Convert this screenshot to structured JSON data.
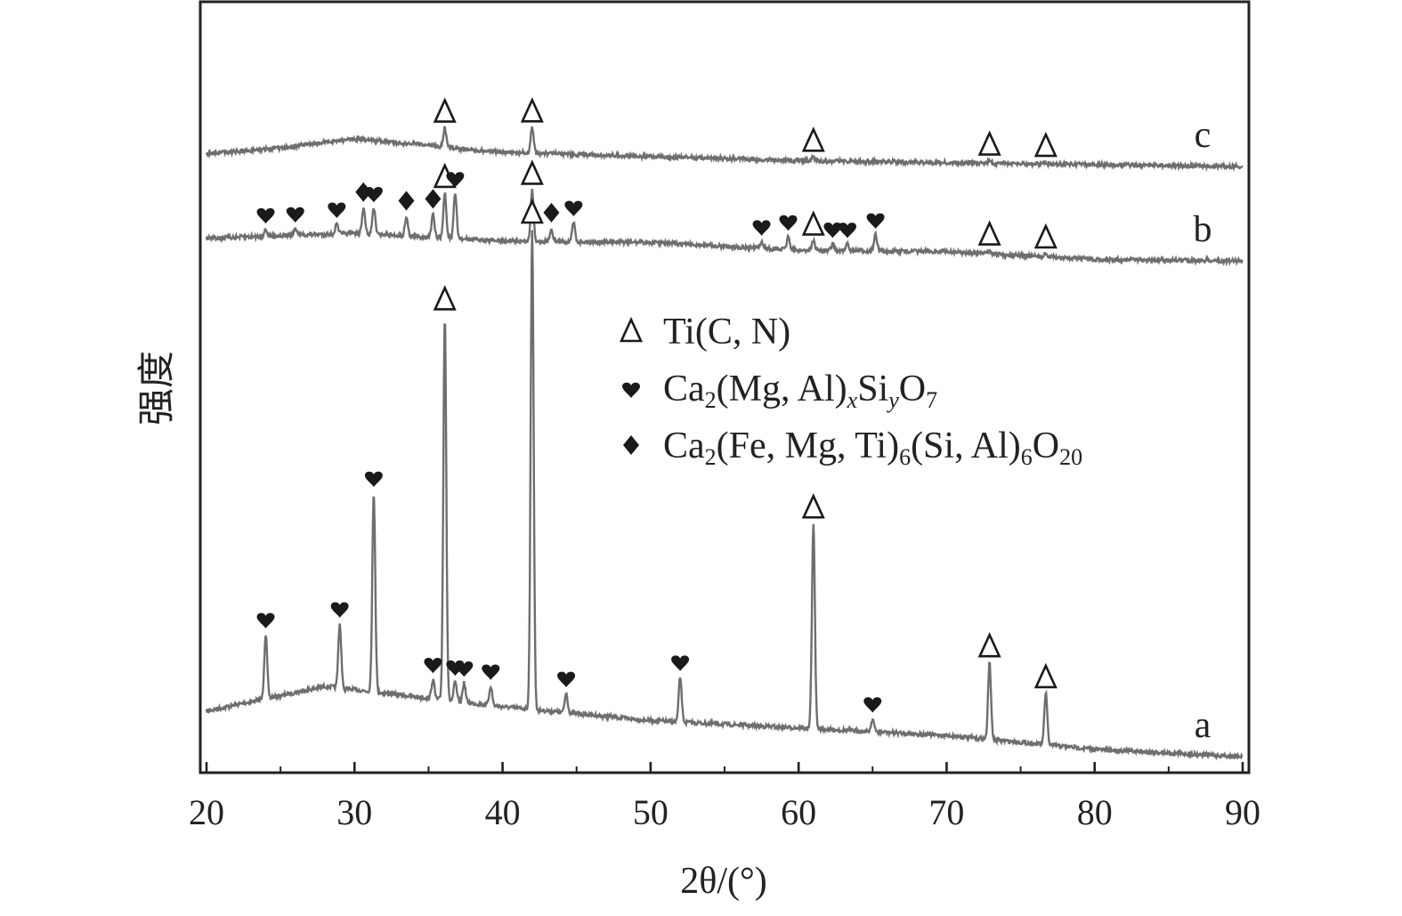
{
  "chart_data": {
    "type": "line",
    "title": "",
    "xlabel": "2θ/(°)",
    "ylabel": "强度",
    "xlim": [
      20,
      90
    ],
    "xticks": [
      20,
      30,
      40,
      50,
      60,
      70,
      80,
      90
    ],
    "y_ticks_shown": false,
    "legend_position": "center-right",
    "colors": {
      "line": "#6e6e6e",
      "axis": "#222222",
      "marker": "#1a1a1a"
    },
    "legend": [
      {
        "marker": "triangle-open",
        "text": "Ti(C, N)"
      },
      {
        "marker": "heart",
        "text": "Ca2(Mg, Al)xSiyO7"
      },
      {
        "marker": "diamond",
        "text": "Ca2(Fe, Mg, Ti)6(Si, Al)6O20"
      }
    ],
    "series": [
      {
        "name": "a",
        "relative_intensity": true,
        "baseline": [
          [
            20,
            6
          ],
          [
            24,
            8
          ],
          [
            28,
            10
          ],
          [
            32,
            9
          ],
          [
            40,
            7
          ],
          [
            50,
            5
          ],
          [
            60,
            4
          ],
          [
            70,
            3
          ],
          [
            80,
            1
          ],
          [
            90,
            0
          ]
        ],
        "peaks": [
          [
            24.0,
            10
          ],
          [
            29.0,
            10
          ],
          [
            31.3,
            31
          ],
          [
            35.3,
            3
          ],
          [
            36.1,
            60
          ],
          [
            36.8,
            3
          ],
          [
            37.4,
            3
          ],
          [
            39.2,
            3
          ],
          [
            42.0,
            75
          ],
          [
            44.3,
            3
          ],
          [
            52.0,
            7
          ],
          [
            61.0,
            32
          ],
          [
            65.0,
            2
          ],
          [
            72.9,
            12
          ],
          [
            76.7,
            8
          ]
        ],
        "markers": [
          {
            "x": 24.0,
            "type": "heart"
          },
          {
            "x": 29.0,
            "type": "heart"
          },
          {
            "x": 31.3,
            "type": "heart"
          },
          {
            "x": 35.3,
            "type": "heart"
          },
          {
            "x": 36.1,
            "type": "triangle-open"
          },
          {
            "x": 36.8,
            "type": "heart"
          },
          {
            "x": 37.4,
            "type": "heart"
          },
          {
            "x": 39.2,
            "type": "heart"
          },
          {
            "x": 42.0,
            "type": "triangle-open"
          },
          {
            "x": 44.3,
            "type": "heart"
          },
          {
            "x": 52.0,
            "type": "heart"
          },
          {
            "x": 61.0,
            "type": "triangle-open"
          },
          {
            "x": 65.0,
            "type": "heart"
          },
          {
            "x": 72.9,
            "type": "triangle-open"
          },
          {
            "x": 76.7,
            "type": "triangle-open"
          }
        ]
      },
      {
        "name": "b",
        "relative_intensity": true,
        "baseline": [
          [
            20,
            2
          ],
          [
            30,
            3
          ],
          [
            40,
            2
          ],
          [
            50,
            2
          ],
          [
            60,
            1
          ],
          [
            70,
            1
          ],
          [
            80,
            0
          ],
          [
            90,
            0
          ]
        ],
        "peaks": [
          [
            24.0,
            1
          ],
          [
            26.0,
            1
          ],
          [
            28.8,
            1.5
          ],
          [
            30.6,
            4
          ],
          [
            31.3,
            4
          ],
          [
            33.5,
            3
          ],
          [
            35.3,
            3.5
          ],
          [
            36.1,
            7
          ],
          [
            36.8,
            7
          ],
          [
            42.0,
            8
          ],
          [
            43.3,
            2
          ],
          [
            44.8,
            3
          ],
          [
            57.5,
            1
          ],
          [
            59.3,
            2
          ],
          [
            61.0,
            1.5
          ],
          [
            62.3,
            1
          ],
          [
            63.3,
            1
          ],
          [
            65.2,
            2.5
          ],
          [
            72.9,
            0.5
          ],
          [
            76.7,
            0.5
          ]
        ],
        "markers": [
          {
            "x": 24.0,
            "type": "heart"
          },
          {
            "x": 26.0,
            "type": "heart"
          },
          {
            "x": 28.8,
            "type": "heart"
          },
          {
            "x": 30.6,
            "type": "diamond"
          },
          {
            "x": 31.3,
            "type": "heart"
          },
          {
            "x": 33.5,
            "type": "diamond"
          },
          {
            "x": 35.3,
            "type": "diamond"
          },
          {
            "x": 36.1,
            "type": "triangle-open"
          },
          {
            "x": 36.8,
            "type": "heart"
          },
          {
            "x": 42.0,
            "type": "triangle-open"
          },
          {
            "x": 43.3,
            "type": "diamond"
          },
          {
            "x": 44.8,
            "type": "heart"
          },
          {
            "x": 57.5,
            "type": "heart"
          },
          {
            "x": 59.3,
            "type": "heart"
          },
          {
            "x": 61.0,
            "type": "triangle-open"
          },
          {
            "x": 62.3,
            "type": "heart"
          },
          {
            "x": 63.3,
            "type": "heart"
          },
          {
            "x": 65.2,
            "type": "heart"
          },
          {
            "x": 72.9,
            "type": "triangle-open"
          },
          {
            "x": 76.7,
            "type": "triangle-open"
          }
        ]
      },
      {
        "name": "c",
        "relative_intensity": true,
        "baseline": [
          [
            20,
            1
          ],
          [
            25,
            2
          ],
          [
            30,
            3.5
          ],
          [
            35,
            2.5
          ],
          [
            40,
            1.5
          ],
          [
            50,
            1
          ],
          [
            60,
            0.5
          ],
          [
            70,
            0.3
          ],
          [
            90,
            0
          ]
        ],
        "peaks": [
          [
            36.1,
            3
          ],
          [
            42.0,
            4
          ],
          [
            61.0,
            0.6
          ],
          [
            72.9,
            0.4
          ],
          [
            76.7,
            0.3
          ]
        ],
        "markers": [
          {
            "x": 36.1,
            "type": "triangle-open"
          },
          {
            "x": 42.0,
            "type": "triangle-open"
          },
          {
            "x": 61.0,
            "type": "triangle-open"
          },
          {
            "x": 72.9,
            "type": "triangle-open"
          },
          {
            "x": 76.7,
            "type": "triangle-open"
          }
        ]
      }
    ]
  }
}
